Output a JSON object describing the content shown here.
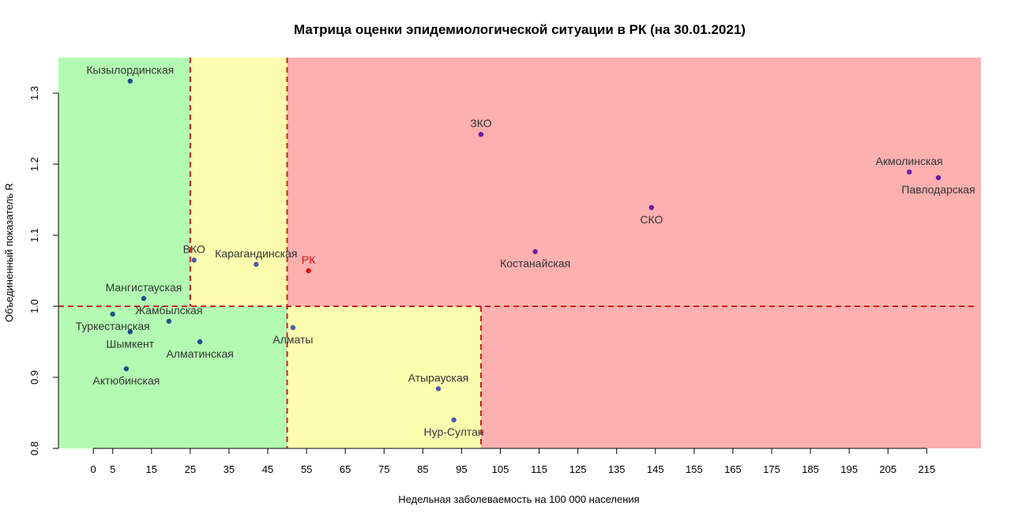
{
  "chart_data": {
    "type": "scatter",
    "title": "Матрица оценки эпидемиологической ситуации в РК (на 30.01.2021)",
    "xlabel": "Недельная заболеваемость на 100 000 населения",
    "ylabel": "Объединенный показатель R",
    "xlim": [
      -9,
      229
    ],
    "ylim": [
      0.8,
      1.35
    ],
    "x_ticks": [
      0,
      5,
      15,
      25,
      35,
      45,
      55,
      65,
      75,
      85,
      95,
      105,
      115,
      125,
      135,
      145,
      155,
      165,
      175,
      185,
      195,
      205,
      215
    ],
    "y_ticks": [
      0.8,
      0.9,
      1.0,
      1.1,
      1.2,
      1.3
    ],
    "thresholds": {
      "x": [
        25,
        50,
        100
      ],
      "y": [
        1.0
      ]
    },
    "zones": [
      {
        "name": "green",
        "color": "#b3fbb3",
        "x": [
          -9,
          25
        ],
        "y": [
          1.0,
          1.35
        ]
      },
      {
        "name": "green",
        "color": "#b3fbb3",
        "x": [
          -9,
          50
        ],
        "y": [
          0.8,
          1.0
        ]
      },
      {
        "name": "yellow",
        "color": "#fdfdb0",
        "x": [
          25,
          50
        ],
        "y": [
          1.0,
          1.35
        ]
      },
      {
        "name": "yellow",
        "color": "#fdfdb0",
        "x": [
          50,
          100
        ],
        "y": [
          0.8,
          1.0
        ]
      },
      {
        "name": "red",
        "color": "#fdb0b0",
        "x": [
          50,
          229
        ],
        "y": [
          1.0,
          1.35
        ]
      },
      {
        "name": "red",
        "color": "#fdb0b0",
        "x": [
          100,
          229
        ],
        "y": [
          0.8,
          1.0
        ]
      }
    ],
    "grid": false,
    "points": [
      {
        "label": "Кызылординская",
        "x": 9.5,
        "y": 1.317,
        "color": "#1f4e8c",
        "label_pos": "above"
      },
      {
        "label": "ЗКО",
        "x": 100,
        "y": 1.242,
        "color": "#6a1aa8",
        "label_pos": "above"
      },
      {
        "label": "Акмолинская",
        "x": 210.5,
        "y": 1.189,
        "color": "#6a1aa8",
        "label_pos": "above"
      },
      {
        "label": "Павлодарская",
        "x": 218,
        "y": 1.181,
        "color": "#6a1aa8",
        "label_pos": "below"
      },
      {
        "label": "СКО",
        "x": 144,
        "y": 1.139,
        "color": "#6a1aa8",
        "label_pos": "below"
      },
      {
        "label": "Костанайская",
        "x": 114,
        "y": 1.077,
        "color": "#6a1aa8",
        "label_pos": "below"
      },
      {
        "label": "ВКО",
        "x": 26,
        "y": 1.065,
        "color": "#4a5aa8",
        "label_pos": "above"
      },
      {
        "label": "Карагандинская",
        "x": 42,
        "y": 1.059,
        "color": "#4a5aa8",
        "label_pos": "above"
      },
      {
        "label": "РК",
        "x": 55.5,
        "y": 1.05,
        "color": "#e01010",
        "label_pos": "above",
        "label_color": "#e01010"
      },
      {
        "label": "Мангистауская",
        "x": 13,
        "y": 1.011,
        "color": "#1f4e8c",
        "label_pos": "above"
      },
      {
        "label": "Туркестанская",
        "x": 5,
        "y": 0.989,
        "color": "#1f4e8c",
        "label_pos": "below"
      },
      {
        "label": "Жамбылская",
        "x": 19.5,
        "y": 0.979,
        "color": "#1f4e8c",
        "label_pos": "above"
      },
      {
        "label": "Шымкент",
        "x": 9.5,
        "y": 0.964,
        "color": "#1f4e8c",
        "label_pos": "below"
      },
      {
        "label": "Алматы",
        "x": 51.5,
        "y": 0.97,
        "color": "#4a5aa8",
        "label_pos": "below"
      },
      {
        "label": "Алматинская",
        "x": 27.5,
        "y": 0.95,
        "color": "#1f4e8c",
        "label_pos": "below"
      },
      {
        "label": "Актюбинская",
        "x": 8.5,
        "y": 0.912,
        "color": "#1f4e8c",
        "label_pos": "below"
      },
      {
        "label": "Атырауская",
        "x": 89,
        "y": 0.884,
        "color": "#4a5aa8",
        "label_pos": "above"
      },
      {
        "label": "Нур-Султан",
        "x": 93,
        "y": 0.84,
        "color": "#4a5aa8",
        "label_pos": "below"
      }
    ]
  }
}
